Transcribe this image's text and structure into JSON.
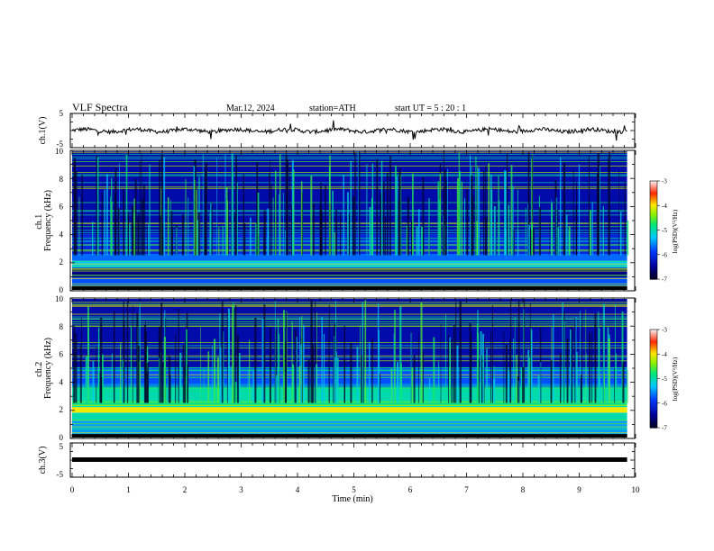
{
  "header": {
    "title": "VLF  Spectra",
    "date": "Mar.12, 2024",
    "station": "station=ATH",
    "start": "start  UT  =    5  : 20 : 1"
  },
  "chart_data": [
    {
      "type": "line",
      "ylabel": "ch.1(V)",
      "ylim": [
        -5,
        5
      ],
      "ytick_labels": [
        "5",
        "-5"
      ],
      "baseline_level": 0,
      "x_range_min": [
        0,
        9.85
      ]
    },
    {
      "type": "heatmap",
      "ylabel": "ch.1\nFrequency  (kHz)",
      "ylabel_lines": [
        "ch.1",
        "Frequency  (kHz)"
      ],
      "ylim": [
        0,
        10
      ],
      "ytick_labels": [
        "0",
        "2",
        "4",
        "6",
        "8",
        "10"
      ],
      "colorbar": {
        "label": "log(PSD)(V²/Hz)",
        "range": [
          -7,
          -3
        ],
        "tick_labels": [
          "-3",
          "-4",
          "-5",
          "-6",
          "-7"
        ]
      },
      "bands_khz": [
        {
          "lo": 0.0,
          "hi": 0.25,
          "level": -7
        },
        {
          "lo": 0.25,
          "hi": 0.9,
          "level": -5.8
        },
        {
          "lo": 0.9,
          "hi": 1.6,
          "level": -6.6
        },
        {
          "lo": 1.6,
          "hi": 2.1,
          "level": -5.3
        },
        {
          "lo": 2.1,
          "hi": 2.6,
          "level": -5.7
        },
        {
          "lo": 2.6,
          "hi": 4.0,
          "level": -6.1
        },
        {
          "lo": 4.0,
          "hi": 10.0,
          "level": -6.4
        }
      ]
    },
    {
      "type": "heatmap",
      "ylabel": "ch.2\nFrequency  (kHz)",
      "ylabel_lines": [
        "ch.2",
        "Frequency  (kHz)"
      ],
      "ylim": [
        0,
        10
      ],
      "ytick_labels": [
        "0",
        "2",
        "4",
        "6",
        "8",
        "10"
      ],
      "colorbar": {
        "label": "log(PSD)(V²/Hz)",
        "range": [
          -7,
          -3
        ],
        "tick_labels": [
          "-3",
          "-4",
          "-5",
          "-6",
          "-7"
        ]
      },
      "bands_khz": [
        {
          "lo": 0.0,
          "hi": 0.2,
          "level": -7
        },
        {
          "lo": 0.2,
          "hi": 1.2,
          "level": -5.5
        },
        {
          "lo": 1.2,
          "hi": 1.8,
          "level": -5.0
        },
        {
          "lo": 1.8,
          "hi": 2.2,
          "level": -4.0
        },
        {
          "lo": 2.2,
          "hi": 3.6,
          "level": -5.0
        },
        {
          "lo": 3.6,
          "hi": 5.0,
          "level": -5.8
        },
        {
          "lo": 5.0,
          "hi": 10.0,
          "level": -6.4
        }
      ]
    },
    {
      "type": "line",
      "ylabel": "ch.3(V)",
      "ylim": [
        -5,
        5
      ],
      "ytick_labels": [
        "5",
        "-5"
      ],
      "baseline_level": 0
    }
  ],
  "xaxis": {
    "label": "Time  (min)",
    "range": [
      0,
      10
    ],
    "tick_labels": [
      "0",
      "1",
      "2",
      "3",
      "4",
      "5",
      "6",
      "7",
      "8",
      "9",
      "10"
    ],
    "data_end": 9.85
  }
}
